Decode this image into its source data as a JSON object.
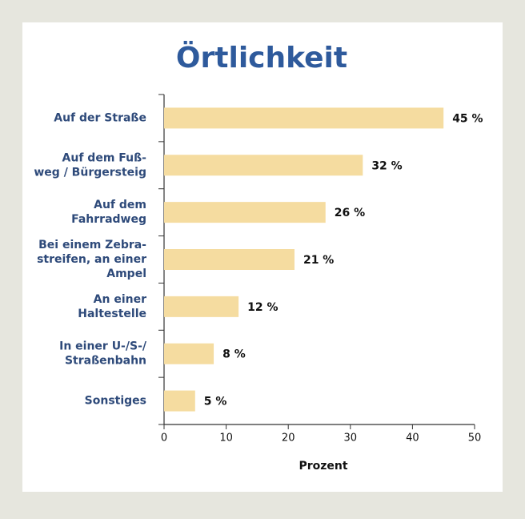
{
  "chart_data": {
    "type": "bar",
    "orientation": "horizontal",
    "title": "Örtlichkeit",
    "categories": [
      [
        "Auf der Straße"
      ],
      [
        "Auf dem Fuß-",
        "weg / Bürgersteig"
      ],
      [
        "Auf dem",
        "Fahrradweg"
      ],
      [
        "Bei einem Zebra-",
        "streifen, an einer",
        "Ampel"
      ],
      [
        "An einer",
        "Haltestelle"
      ],
      [
        "In einer U-/S-/",
        "Straßenbahn"
      ],
      [
        "Sonstiges"
      ]
    ],
    "values": [
      45,
      32,
      26,
      21,
      12,
      8,
      5
    ],
    "value_labels": [
      "45 %",
      "32 %",
      "26 %",
      "21 %",
      "12 %",
      "8 %",
      "5 %"
    ],
    "color": "#f5dca0",
    "xlabel": "Prozent",
    "xlim": [
      0,
      50
    ],
    "xticks": [
      0,
      10,
      20,
      30,
      40,
      50
    ]
  }
}
